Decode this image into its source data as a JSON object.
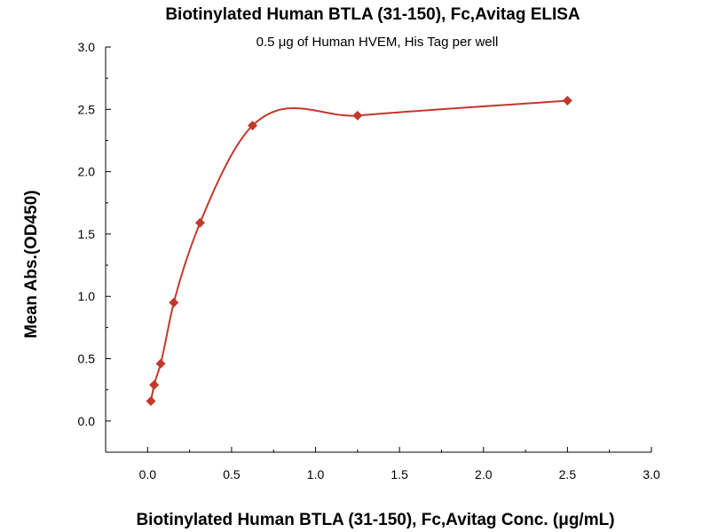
{
  "chart_data": {
    "type": "scatter",
    "title": "Biotinylated Human BTLA (31-150), Fc,Avitag ELISA",
    "subtitle": "0.5 μg of Human HVEM, His Tag per well",
    "xlabel": "Biotinylated Human BTLA (31-150), Fc,Avitag Conc. (μg/mL)",
    "ylabel": "Mean Abs.(OD450)",
    "xlim": [
      -0.25,
      3.0
    ],
    "ylim": [
      -0.25,
      3.0
    ],
    "xticks": [
      "0.0",
      "0.5",
      "1.0",
      "1.5",
      "2.0",
      "2.5",
      "3.0"
    ],
    "yticks": [
      "0.0",
      "0.5",
      "1.0",
      "1.5",
      "2.0",
      "2.5",
      "3.0"
    ],
    "grid": false,
    "colors": {
      "series": "#c0392b"
    },
    "series": [
      {
        "x": [
          0.0195,
          0.039,
          0.078,
          0.156,
          0.3125,
          0.625,
          1.25,
          2.5
        ],
        "y": [
          0.16,
          0.29,
          0.46,
          0.95,
          1.59,
          2.37,
          2.45,
          2.57
        ],
        "marker": "diamond",
        "fit": "4PL curve"
      }
    ]
  }
}
